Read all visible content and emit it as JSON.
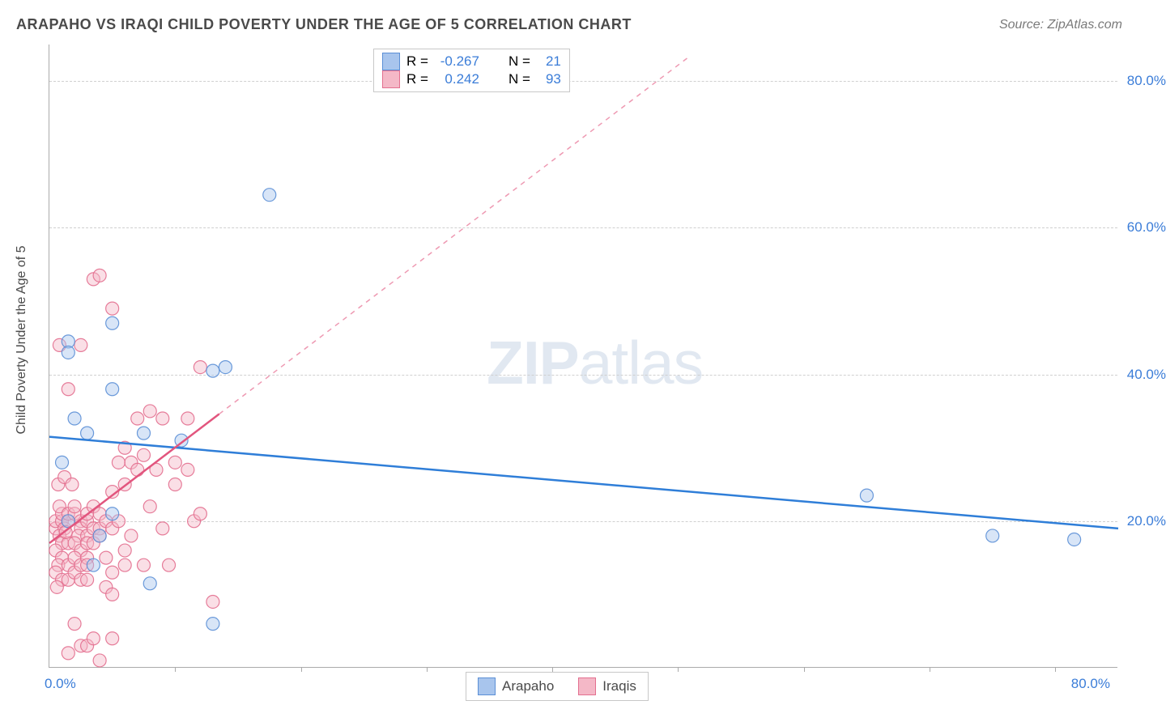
{
  "title": "ARAPAHO VS IRAQI CHILD POVERTY UNDER THE AGE OF 5 CORRELATION CHART",
  "source": "Source: ZipAtlas.com",
  "ylabel": "Child Poverty Under the Age of 5",
  "watermark_bold": "ZIP",
  "watermark_light": "atlas",
  "chart": {
    "type": "scatter",
    "background_color": "#ffffff",
    "grid_color": "#d0d0d0",
    "axis_color": "#aaaaaa",
    "xlim": [
      0,
      85
    ],
    "ylim": [
      0,
      85
    ],
    "y_ticks": [
      20,
      40,
      60,
      80
    ],
    "y_tick_labels": [
      "20.0%",
      "40.0%",
      "60.0%",
      "80.0%"
    ],
    "x_origin_label": "0.0%",
    "x_max_label": "80.0%",
    "x_minor_ticks": [
      10,
      20,
      30,
      40,
      50,
      60,
      70,
      80
    ],
    "marker_radius": 8,
    "marker_opacity": 0.45,
    "marker_stroke_opacity": 0.9,
    "series": [
      {
        "name": "Arapaho",
        "fill": "#a8c5ed",
        "stroke": "#5b8fd6",
        "R_label": "R =",
        "R": "-0.267",
        "N_label": "N =",
        "N": "21",
        "trend": {
          "x1": 0,
          "y1": 31.5,
          "x2": 85,
          "y2": 19.0,
          "solid_until_x": 85,
          "color": "#2f7ed8",
          "width": 2.5
        },
        "points": [
          [
            1.5,
            44.5
          ],
          [
            2,
            34
          ],
          [
            1.5,
            43
          ],
          [
            1,
            28
          ],
          [
            3,
            32
          ],
          [
            5,
            38
          ],
          [
            5,
            47
          ],
          [
            7.5,
            32
          ],
          [
            8,
            11.5
          ],
          [
            10.5,
            31
          ],
          [
            13,
            40.5
          ],
          [
            14,
            41
          ],
          [
            13,
            6
          ],
          [
            17.5,
            64.5
          ],
          [
            5,
            21
          ],
          [
            4,
            18
          ],
          [
            65,
            23.5
          ],
          [
            75,
            18
          ],
          [
            81.5,
            17.5
          ],
          [
            1.5,
            20
          ],
          [
            3.5,
            14
          ]
        ]
      },
      {
        "name": "Iraqis",
        "fill": "#f4b8c7",
        "stroke": "#e36f8f",
        "R_label": "R =",
        "R": "0.242",
        "N_label": "N =",
        "N": "93",
        "trend": {
          "x1": 0,
          "y1": 17.0,
          "x2": 51,
          "y2": 83.5,
          "solid_until_x": 13.5,
          "color": "#e2557e",
          "width": 2.5
        },
        "points": [
          [
            0.5,
            19
          ],
          [
            0.5,
            20
          ],
          [
            1,
            20
          ],
          [
            1,
            21
          ],
          [
            0.8,
            22
          ],
          [
            1.2,
            19
          ],
          [
            1.5,
            20
          ],
          [
            1.5,
            21
          ],
          [
            0.8,
            18
          ],
          [
            1,
            17
          ],
          [
            1.5,
            17
          ],
          [
            1.3,
            18.5
          ],
          [
            0.5,
            16
          ],
          [
            1,
            15
          ],
          [
            0.7,
            14
          ],
          [
            1.5,
            14
          ],
          [
            0.5,
            13
          ],
          [
            1,
            12
          ],
          [
            1.5,
            12
          ],
          [
            2,
            13
          ],
          [
            0.6,
            11
          ],
          [
            2,
            21
          ],
          [
            2,
            22
          ],
          [
            2.5,
            20
          ],
          [
            2.5,
            19
          ],
          [
            2.3,
            18
          ],
          [
            2,
            17
          ],
          [
            2.5,
            16
          ],
          [
            2,
            15
          ],
          [
            2.5,
            14
          ],
          [
            2.5,
            12
          ],
          [
            3,
            20
          ],
          [
            3,
            21
          ],
          [
            3,
            18
          ],
          [
            3,
            17
          ],
          [
            3,
            15
          ],
          [
            3,
            14
          ],
          [
            3,
            12
          ],
          [
            3.5,
            19
          ],
          [
            3.5,
            17
          ],
          [
            3.5,
            22
          ],
          [
            4,
            19
          ],
          [
            4,
            18
          ],
          [
            4,
            21
          ],
          [
            4.5,
            15
          ],
          [
            4.5,
            20
          ],
          [
            4.5,
            11
          ],
          [
            5,
            19
          ],
          [
            5,
            24
          ],
          [
            5,
            13
          ],
          [
            5,
            10
          ],
          [
            5.5,
            20
          ],
          [
            5.5,
            28
          ],
          [
            6,
            16
          ],
          [
            6,
            14
          ],
          [
            6,
            25
          ],
          [
            6,
            30
          ],
          [
            6.5,
            18
          ],
          [
            6.5,
            28
          ],
          [
            7,
            34
          ],
          [
            7,
            27
          ],
          [
            7.5,
            29
          ],
          [
            7.5,
            14
          ],
          [
            8,
            22
          ],
          [
            8,
            35
          ],
          [
            8.5,
            27
          ],
          [
            9,
            34
          ],
          [
            9,
            19
          ],
          [
            9.5,
            14
          ],
          [
            10,
            25
          ],
          [
            10,
            28
          ],
          [
            11,
            34
          ],
          [
            11,
            27
          ],
          [
            11.5,
            20
          ],
          [
            12,
            21
          ],
          [
            12,
            41
          ],
          [
            13,
            9
          ],
          [
            1.5,
            2
          ],
          [
            2.5,
            3
          ],
          [
            3,
            3
          ],
          [
            3.5,
            4
          ],
          [
            4,
            1
          ],
          [
            5,
            4
          ],
          [
            2,
            6
          ],
          [
            0.8,
            44
          ],
          [
            2.5,
            44
          ],
          [
            3.5,
            53
          ],
          [
            4,
            53.5
          ],
          [
            5,
            49
          ],
          [
            1.5,
            38
          ],
          [
            0.7,
            25
          ],
          [
            1.2,
            26
          ],
          [
            1.8,
            25
          ]
        ]
      }
    ]
  },
  "legend_bottom": {
    "items": [
      "Arapaho",
      "Iraqis"
    ]
  }
}
